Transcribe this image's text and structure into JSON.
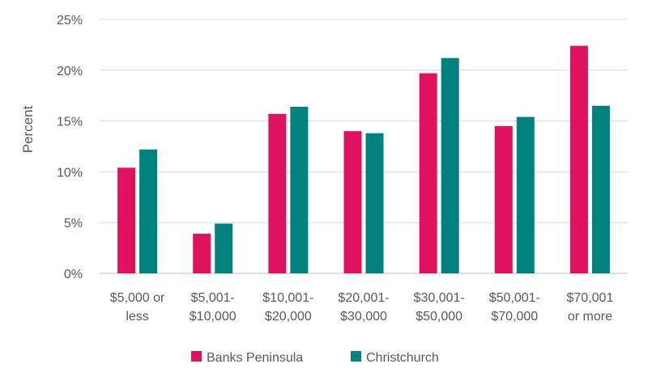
{
  "chart_data": {
    "type": "bar",
    "title": "",
    "xlabel": "",
    "ylabel": "Percent",
    "ylim": [
      0,
      25
    ],
    "yticks": [
      0,
      5,
      10,
      15,
      20,
      25
    ],
    "ytick_labels": [
      "0%",
      "5%",
      "10%",
      "15%",
      "20%",
      "25%"
    ],
    "grid": true,
    "legend_position": "bottom",
    "categories": [
      [
        "$5,000 or",
        "less"
      ],
      [
        "$5,001-",
        "$10,000"
      ],
      [
        "$10,001-",
        "$20,000"
      ],
      [
        "$20,001-",
        "$30,000"
      ],
      [
        "$30,001-",
        "$50,000"
      ],
      [
        "$50,001-",
        "$70,000"
      ],
      [
        "$70,001",
        "or more"
      ]
    ],
    "series": [
      {
        "name": "Banks Peninsula",
        "color": "#e0115f",
        "values": [
          10.4,
          3.9,
          15.7,
          14.0,
          19.7,
          14.5,
          22.4
        ]
      },
      {
        "name": "Christchurch",
        "color": "#00827f",
        "values": [
          12.2,
          4.9,
          16.4,
          13.8,
          21.2,
          15.4,
          16.5
        ]
      }
    ]
  }
}
